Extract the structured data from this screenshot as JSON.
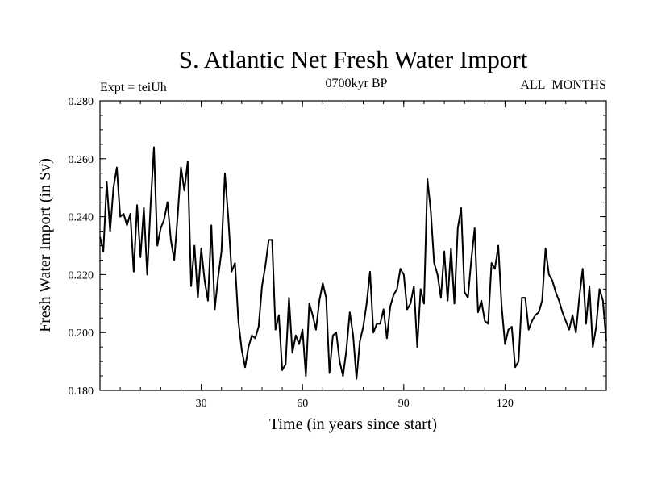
{
  "chart_data": {
    "type": "line",
    "title": "S. Atlantic Net Fresh Water Import",
    "subtitle_left": "Expt = teiUh",
    "subtitle_center": "0700kyr BP",
    "subtitle_right": "ALL_MONTHS",
    "xlabel": "Time (in years since start)",
    "ylabel": "Fresh Water Import (in Sv)",
    "xlim": [
      0,
      150
    ],
    "ylim": [
      0.18,
      0.28
    ],
    "xticks": [
      30,
      60,
      90,
      120
    ],
    "xtick_labels": [
      "30",
      "60",
      "90",
      "120"
    ],
    "yticks": [
      0.18,
      0.2,
      0.22,
      0.24,
      0.26,
      0.28
    ],
    "ytick_labels": [
      "0.180",
      "0.200",
      "0.220",
      "0.240",
      "0.260",
      "0.280"
    ],
    "series": [
      {
        "name": "Fresh Water Import",
        "color": "#000000",
        "x": [
          0,
          1,
          2,
          3,
          4,
          5,
          6,
          7,
          8,
          9,
          10,
          11,
          12,
          13,
          14,
          15,
          16,
          17,
          18,
          19,
          20,
          21,
          22,
          23,
          24,
          25,
          26,
          27,
          28,
          29,
          30,
          31,
          32,
          33,
          34,
          35,
          36,
          37,
          38,
          39,
          40,
          41,
          42,
          43,
          44,
          45,
          46,
          47,
          48,
          49,
          50,
          51,
          52,
          53,
          54,
          55,
          56,
          57,
          58,
          59,
          60,
          61,
          62,
          63,
          64,
          65,
          66,
          67,
          68,
          69,
          70,
          71,
          72,
          73,
          74,
          75,
          76,
          77,
          78,
          79,
          80,
          81,
          82,
          83,
          84,
          85,
          86,
          87,
          88,
          89,
          90,
          91,
          92,
          93,
          94,
          95,
          96,
          97,
          98,
          99,
          100,
          101,
          102,
          103,
          104,
          105,
          106,
          107,
          108,
          109,
          110,
          111,
          112,
          113,
          114,
          115,
          116,
          117,
          118,
          119,
          120,
          121,
          122,
          123,
          124,
          125,
          126,
          127,
          128,
          129,
          130,
          131,
          132,
          133,
          134,
          135,
          136,
          137,
          138,
          139,
          140,
          141,
          142,
          143,
          144,
          145,
          146,
          147,
          148,
          149,
          150
        ],
        "values": [
          0.233,
          0.228,
          0.252,
          0.235,
          0.25,
          0.257,
          0.24,
          0.241,
          0.237,
          0.241,
          0.221,
          0.244,
          0.226,
          0.243,
          0.22,
          0.244,
          0.264,
          0.23,
          0.236,
          0.239,
          0.245,
          0.232,
          0.225,
          0.24,
          0.257,
          0.249,
          0.259,
          0.216,
          0.23,
          0.212,
          0.229,
          0.218,
          0.211,
          0.237,
          0.208,
          0.219,
          0.228,
          0.255,
          0.24,
          0.221,
          0.224,
          0.204,
          0.194,
          0.188,
          0.195,
          0.199,
          0.198,
          0.202,
          0.216,
          0.223,
          0.232,
          0.232,
          0.201,
          0.206,
          0.187,
          0.189,
          0.212,
          0.193,
          0.199,
          0.196,
          0.201,
          0.185,
          0.21,
          0.206,
          0.201,
          0.211,
          0.217,
          0.212,
          0.186,
          0.199,
          0.2,
          0.19,
          0.185,
          0.194,
          0.207,
          0.199,
          0.184,
          0.197,
          0.202,
          0.21,
          0.221,
          0.2,
          0.203,
          0.203,
          0.208,
          0.198,
          0.209,
          0.213,
          0.215,
          0.222,
          0.22,
          0.208,
          0.21,
          0.216,
          0.195,
          0.215,
          0.21,
          0.253,
          0.242,
          0.224,
          0.22,
          0.212,
          0.228,
          0.211,
          0.229,
          0.21,
          0.236,
          0.243,
          0.214,
          0.212,
          0.225,
          0.236,
          0.207,
          0.211,
          0.204,
          0.203,
          0.224,
          0.222,
          0.23,
          0.209,
          0.196,
          0.201,
          0.202,
          0.188,
          0.19,
          0.212,
          0.212,
          0.201,
          0.204,
          0.206,
          0.207,
          0.211,
          0.229,
          0.22,
          0.218,
          0.214,
          0.211,
          0.207,
          0.204,
          0.201,
          0.206,
          0.2,
          0.212,
          0.222,
          0.203,
          0.216,
          0.195,
          0.202,
          0.215,
          0.211,
          0.197
        ]
      }
    ]
  }
}
